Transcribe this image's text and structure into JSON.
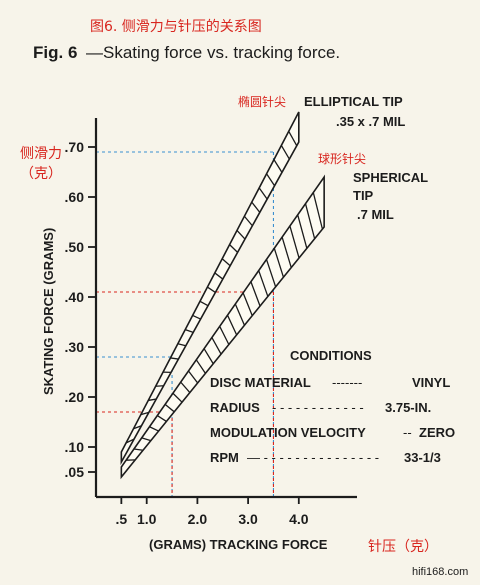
{
  "caption_cn": "图6. 侧滑力与针压的关系图",
  "fig_label": "Fig. 6",
  "fig_title": "—Skating force vs. tracking force.",
  "watermark": "hifi168.com",
  "chart_data": {
    "type": "area",
    "title": "Skating force vs. tracking force.",
    "xlabel": "(GRAMS) TRACKING FORCE",
    "xlabel_cn": "针压（克）",
    "ylabel": "SKATING FORCE (GRAMS)",
    "ylabel_cn_1": "侧滑力",
    "ylabel_cn_2": "（克）",
    "x_ticks": [
      0.5,
      1.0,
      2.0,
      3.0,
      4.0
    ],
    "x_tick_labels": [
      ".5",
      "1.0",
      "2.0",
      "3.0",
      "4.0"
    ],
    "y_ticks": [
      0.05,
      0.1,
      0.2,
      0.3,
      0.4,
      0.5,
      0.6,
      0.7
    ],
    "y_tick_labels": [
      ".05",
      ".10",
      ".20",
      ".30",
      ".40",
      ".50",
      ".60",
      ".70"
    ],
    "xlim": [
      0,
      4.5
    ],
    "ylim": [
      0,
      0.8
    ],
    "series": [
      {
        "name": "ELLIPTICAL TIP .35 x .7 MIL",
        "label_line1": "ELLIPTICAL TIP",
        "label_line2": ".35 x .7 MIL",
        "label_cn": "椭圆针尖",
        "x": [
          0.5,
          4.0
        ],
        "y_low": [
          0.07,
          0.71
        ],
        "y_high": [
          0.09,
          0.77
        ]
      },
      {
        "name": "SPHERICAL TIP .7 MIL",
        "label_line1": "SPHERICAL",
        "label_line2": "TIP",
        "label_line3": ".7 MIL",
        "label_cn": "球形针尖",
        "x": [
          0.5,
          4.5
        ],
        "y_low": [
          0.04,
          0.54
        ],
        "y_high": [
          0.06,
          0.64
        ]
      }
    ],
    "reference_lines": [
      {
        "x": 1.5,
        "y": 0.28,
        "color": "#3a8fd0"
      },
      {
        "x": 3.5,
        "y": 0.69,
        "color": "#3a8fd0"
      },
      {
        "x": 1.5,
        "y": 0.17,
        "color": "#d8261f"
      },
      {
        "x": 3.5,
        "y": 0.41,
        "color": "#d8261f"
      }
    ],
    "conditions": {
      "heading": "CONDITIONS",
      "rows": [
        {
          "label": "DISC MATERIAL",
          "leader": "-------",
          "value": "VINYL"
        },
        {
          "label": "RADIUS",
          "leader": "- - - - - - - - - - - -",
          "value": "3.75-IN."
        },
        {
          "label": "MODULATION VELOCITY",
          "leader": "--",
          "value": "ZERO"
        },
        {
          "label": "RPM",
          "leader": "— - - - - - - - - - - - - - - -",
          "value": "33-1/3"
        }
      ]
    }
  }
}
